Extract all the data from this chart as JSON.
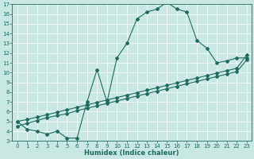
{
  "xlabel": "Humidex (Indice chaleur)",
  "xlim": [
    -0.5,
    23.5
  ],
  "ylim": [
    3,
    17
  ],
  "xticks": [
    0,
    1,
    2,
    3,
    4,
    5,
    6,
    7,
    8,
    9,
    10,
    11,
    12,
    13,
    14,
    15,
    16,
    17,
    18,
    19,
    20,
    21,
    22,
    23
  ],
  "yticks": [
    3,
    4,
    5,
    6,
    7,
    8,
    9,
    10,
    11,
    12,
    13,
    14,
    15,
    16,
    17
  ],
  "bg_color": "#c9e8e4",
  "line_color": "#1e6b5e",
  "line1_x": [
    0,
    1,
    2,
    3,
    4,
    5,
    6,
    7,
    8,
    9,
    10,
    11,
    12,
    13,
    14,
    15,
    16,
    17,
    18,
    19,
    20,
    21,
    22,
    23
  ],
  "line1_y": [
    5.0,
    4.2,
    4.0,
    3.7,
    4.0,
    3.3,
    3.3,
    7.0,
    10.3,
    7.0,
    11.5,
    13.0,
    15.5,
    16.2,
    16.5,
    17.2,
    16.5,
    16.2,
    13.3,
    12.5,
    11.0,
    11.2,
    11.5,
    11.5
  ],
  "line2_x": [
    0,
    1,
    2,
    3,
    4,
    5,
    6,
    7,
    8,
    9,
    10,
    11,
    12,
    13,
    14,
    15,
    16,
    17,
    18,
    19,
    20,
    21,
    22,
    23
  ],
  "line2_y": [
    4.5,
    4.8,
    5.1,
    5.4,
    5.6,
    5.8,
    6.1,
    6.35,
    6.6,
    6.85,
    7.1,
    7.35,
    7.6,
    7.85,
    8.1,
    8.35,
    8.6,
    8.85,
    9.1,
    9.35,
    9.6,
    9.85,
    10.1,
    11.3
  ],
  "line3_x": [
    0,
    1,
    2,
    3,
    4,
    5,
    6,
    7,
    8,
    9,
    10,
    11,
    12,
    13,
    14,
    15,
    16,
    17,
    18,
    19,
    20,
    21,
    22,
    23
  ],
  "line3_y": [
    5.0,
    5.2,
    5.45,
    5.7,
    5.95,
    6.2,
    6.45,
    6.7,
    6.95,
    7.2,
    7.45,
    7.7,
    7.95,
    8.2,
    8.45,
    8.7,
    8.95,
    9.2,
    9.45,
    9.7,
    9.95,
    10.2,
    10.45,
    11.8
  ],
  "marker": "D",
  "markersize": 2.0,
  "linewidth": 0.8,
  "tick_fontsize": 5.0,
  "xlabel_fontsize": 6.0
}
